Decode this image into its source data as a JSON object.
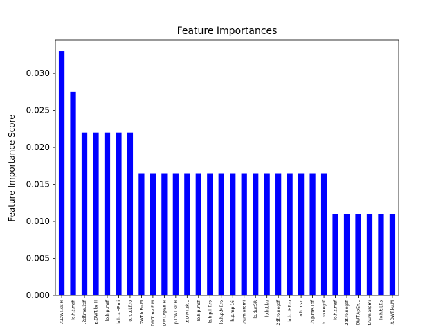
{
  "chart_data": {
    "type": "bar",
    "title": "Feature Importances",
    "xlabel": "",
    "ylabel": "Feature Importance Score",
    "ylim": [
      0,
      0.0345
    ],
    "yticks": [
      "0.000",
      "0.005",
      "0.010",
      "0.015",
      "0.020",
      "0.025",
      "0.030"
    ],
    "ytick_values": [
      0,
      0.005,
      0.01,
      0.015,
      0.02,
      0.025,
      0.03
    ],
    "grid": false,
    "bar_color": "#0000ff",
    "categories": [
      ".t.DWT.sk.H",
      "lo.h.t.mdf",
      ".2df.me.2df",
      "p.DWT.ku.H",
      "lo.h.p.mef",
      "lo.h.p.HF.mi",
      "lo.h.p.LF.ro",
      "DWT.InEn.M",
      "DWT.me.E.M",
      "DWT.ApEn.H",
      "p.DWT.sk.H",
      ".t.DWT.sk.L",
      "lo.h.p.mef",
      "lo.h.p.HF.ro",
      "lo.h.p.MF.ro",
      ".h.p.mp.16",
      ".num.argmi",
      "lo.dur.SR",
      "lo.h.t.ku",
      ".2df.ro.negdf",
      "lo.h.t.HF.ro",
      "lo.h.p.sk",
      ".h.p.me.1df",
      ".h.t.ro.negdf",
      "lo.h.t.mef",
      ".2df.ro.negdf",
      "DWT.ApEn.L",
      ".f.num.argmi",
      "lo.h.t.LF.s",
      ".t.DWT.ku.M"
    ],
    "values": [
      0.033,
      0.0275,
      0.022,
      0.022,
      0.022,
      0.022,
      0.022,
      0.0165,
      0.0165,
      0.0165,
      0.0165,
      0.0165,
      0.0165,
      0.0165,
      0.0165,
      0.0165,
      0.0165,
      0.0165,
      0.0165,
      0.0165,
      0.0165,
      0.0165,
      0.0165,
      0.0165,
      0.011,
      0.011,
      0.011,
      0.011,
      0.011,
      0.011
    ]
  }
}
